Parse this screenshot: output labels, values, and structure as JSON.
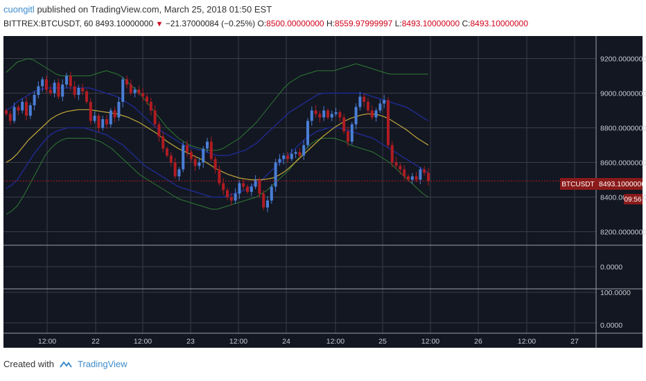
{
  "header": {
    "author": "cuongitl",
    "published_text": "published on TradingView.com, March 25, 2018 01:50 EST",
    "symbol_line": "BITTREX:BTCUSDT, 60",
    "last_price": "8493.10000000",
    "change": "−21.37000084 (−0.25%)",
    "o_label": "O:",
    "o_value": "8500.00000000",
    "h_label": "H:",
    "h_value": "8559.97999997",
    "l_label": "L:",
    "l_value": "8493.10000000",
    "c_label": "C:",
    "c_value": "8493.10000000"
  },
  "footer": {
    "created_with": "Created with",
    "brand": "TradingView"
  },
  "colors": {
    "background": "#131722",
    "up": "#4a7fd6",
    "down": "#b01c22",
    "ma": "#c2a83a",
    "band_outer": "#2e7d32",
    "band_inner": "#1f2a8c",
    "price_line": "#b01c22",
    "grid": "#3a3e4a"
  },
  "chart_data": {
    "type": "candlestick",
    "symbol": "BTCUSDT",
    "last_price_label": "8493.10000000",
    "countdown": "09:56",
    "y_ticks": [
      "9200.00000000",
      "9000.00000000",
      "8800.00000000",
      "8600.00000000",
      "8400.00000000",
      "8200.00000000"
    ],
    "y_tick_values": [
      9200,
      9000,
      8800,
      8600,
      8400,
      8200
    ],
    "ylim": [
      8130,
      9330
    ],
    "x_ticks": [
      "12:00",
      "22",
      "12:00",
      "23",
      "12:00",
      "24",
      "12:00",
      "25",
      "12:00",
      "26",
      "12:00",
      "27"
    ],
    "indicator1_ticks": [
      "0.0000"
    ],
    "indicator2_ticks": [
      "100.0000",
      "0.0000"
    ],
    "close": [
      8880,
      8840,
      8920,
      8900,
      8950,
      8870,
      8930,
      8990,
      9040,
      9080,
      9020,
      9000,
      9060,
      8980,
      9050,
      9100,
      9040,
      8990,
      9030,
      9010,
      8950,
      8840,
      8870,
      8800,
      8850,
      8820,
      8900,
      8860,
      8950,
      9080,
      9050,
      9000,
      9020,
      9000,
      8980,
      8950,
      8900,
      8820,
      8750,
      8680,
      8640,
      8600,
      8520,
      8560,
      8700,
      8660,
      8620,
      8580,
      8600,
      8680,
      8720,
      8620,
      8560,
      8480,
      8440,
      8400,
      8380,
      8420,
      8480,
      8460,
      8430,
      8460,
      8500,
      8420,
      8340,
      8380,
      8460,
      8600,
      8620,
      8640,
      8620,
      8650,
      8660,
      8640,
      8700,
      8840,
      8900,
      8880,
      8860,
      8900,
      8860,
      8880,
      8890,
      8860,
      8780,
      8720,
      8820,
      8920,
      8980,
      8950,
      8900,
      8860,
      8900,
      8940,
      8960,
      8700,
      8600,
      8580,
      8560,
      8520,
      8500,
      8520,
      8500,
      8560,
      8540,
      8493
    ],
    "sma": [
      8600,
      8620,
      8650,
      8690,
      8730,
      8760,
      8790,
      8820,
      8850,
      8870,
      8885,
      8895,
      8900,
      8905,
      8905,
      8905,
      8900,
      8895,
      8890,
      8885,
      8880,
      8870,
      8860,
      8845,
      8830,
      8810,
      8790,
      8770,
      8745,
      8720,
      8700,
      8680,
      8665,
      8650,
      8635,
      8620,
      8600,
      8580,
      8560,
      8545,
      8530,
      8520,
      8510,
      8505,
      8500,
      8500,
      8500,
      8505,
      8510,
      8525,
      8545,
      8570,
      8600,
      8630,
      8660,
      8690,
      8720,
      8750,
      8775,
      8800,
      8820,
      8840,
      8855,
      8865,
      8875,
      8880,
      8880,
      8875,
      8865,
      8850,
      8830,
      8810,
      8790,
      8765,
      8740,
      8720,
      8700
    ],
    "bb_outer_upper": [
      9120,
      9150,
      9180,
      9190,
      9200,
      9190,
      9170,
      9150,
      9130,
      9110,
      9100,
      9100,
      9100,
      9100,
      9100,
      9100,
      9110,
      9120,
      9130,
      9120,
      9110,
      9090,
      9060,
      9030,
      9000,
      8960,
      8920,
      8880,
      8840,
      8800,
      8770,
      8740,
      8720,
      8700,
      8690,
      8680,
      8670,
      8670,
      8670,
      8680,
      8700,
      8720,
      8740,
      8770,
      8800,
      8830,
      8870,
      8910,
      8950,
      8990,
      9030,
      9060,
      9080,
      9100,
      9110,
      9120,
      9130,
      9130,
      9130,
      9130,
      9140,
      9150,
      9160,
      9170,
      9160,
      9150,
      9140,
      9130,
      9120,
      9110,
      9110,
      9110,
      9110,
      9110,
      9110,
      9110,
      9110
    ],
    "bb_outer_lower": [
      8300,
      8320,
      8350,
      8400,
      8460,
      8520,
      8580,
      8640,
      8680,
      8710,
      8730,
      8740,
      8740,
      8740,
      8740,
      8740,
      8730,
      8720,
      8700,
      8680,
      8650,
      8620,
      8590,
      8560,
      8530,
      8510,
      8490,
      8470,
      8450,
      8430,
      8410,
      8390,
      8380,
      8370,
      8360,
      8350,
      8340,
      8330,
      8330,
      8340,
      8350,
      8360,
      8370,
      8380,
      8390,
      8400,
      8420,
      8440,
      8470,
      8500,
      8530,
      8560,
      8600,
      8640,
      8680,
      8710,
      8730,
      8740,
      8740,
      8740,
      8730,
      8720,
      8700,
      8690,
      8680,
      8670,
      8660,
      8640,
      8620,
      8600,
      8570,
      8540,
      8510,
      8480,
      8450,
      8420,
      8400
    ],
    "bb_inner_upper": [
      8900,
      8920,
      8950,
      8970,
      8990,
      9010,
      9020,
      9030,
      9030,
      9030,
      9030,
      9030,
      9030,
      9030,
      9030,
      9030,
      9020,
      9010,
      9000,
      8990,
      8980,
      8960,
      8940,
      8920,
      8890,
      8860,
      8830,
      8800,
      8780,
      8760,
      8740,
      8720,
      8700,
      8690,
      8680,
      8670,
      8660,
      8650,
      8640,
      8640,
      8640,
      8650,
      8660,
      8670,
      8690,
      8710,
      8740,
      8770,
      8800,
      8830,
      8860,
      8890,
      8910,
      8930,
      8950,
      8970,
      8990,
      9000,
      9000,
      9000,
      9000,
      9000,
      9000,
      9000,
      9000,
      8990,
      8980,
      8970,
      8960,
      8950,
      8940,
      8930,
      8920,
      8900,
      8880,
      8860,
      8840
    ],
    "bb_inner_lower": [
      8450,
      8470,
      8500,
      8550,
      8600,
      8650,
      8690,
      8730,
      8760,
      8780,
      8790,
      8800,
      8800,
      8800,
      8800,
      8790,
      8780,
      8770,
      8760,
      8740,
      8720,
      8700,
      8670,
      8640,
      8610,
      8580,
      8560,
      8540,
      8520,
      8500,
      8480,
      8460,
      8450,
      8440,
      8430,
      8420,
      8410,
      8400,
      8400,
      8400,
      8410,
      8420,
      8430,
      8440,
      8460,
      8480,
      8500,
      8530,
      8560,
      8590,
      8620,
      8650,
      8680,
      8710,
      8740,
      8760,
      8780,
      8790,
      8800,
      8800,
      8800,
      8790,
      8780,
      8770,
      8760,
      8750,
      8740,
      8720,
      8700,
      8680,
      8660,
      8640,
      8620,
      8600,
      8580,
      8560,
      8540
    ]
  }
}
